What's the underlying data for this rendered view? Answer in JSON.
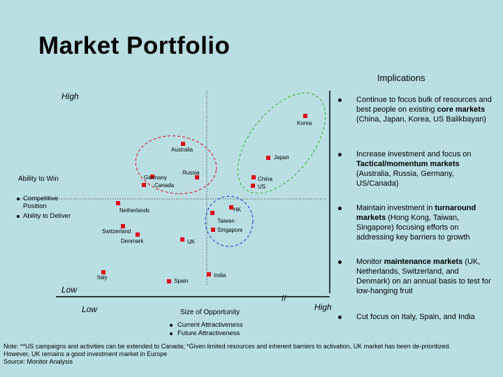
{
  "title": "Market Portfolio",
  "implications_title": "Implications",
  "y_high": "High",
  "y_low": "Low",
  "x_low": "Low",
  "x_high": "High",
  "x_axis_label": "Size of Opportunity",
  "y_axis_label": "Ability to Win",
  "y_legend": [
    "Competitive Position",
    "Ability to Deliver"
  ],
  "x_legend": [
    "Current Attractiveness",
    "Future Attractiveness"
  ],
  "axis_break": "//",
  "markets": [
    {
      "name": "Korea"
    },
    {
      "name": "Australia"
    },
    {
      "name": "Japan"
    },
    {
      "name": "Russia"
    },
    {
      "name": "Germany"
    },
    {
      "name": "Canada"
    },
    {
      "name": "China"
    },
    {
      "name": "US"
    },
    {
      "name": "Netherlands"
    },
    {
      "name": "HK"
    },
    {
      "name": "Taiwan"
    },
    {
      "name": "Singapore"
    },
    {
      "name": "Switzerland"
    },
    {
      "name": "Denmark"
    },
    {
      "name": "UK"
    },
    {
      "name": "Italy"
    },
    {
      "name": "Spain"
    },
    {
      "name": "India"
    }
  ],
  "colors": {
    "background": "#b9dfe3",
    "marker": "#e0001b",
    "core": "#2fb52f",
    "tactical": "#e0001b",
    "turnaround": "#1a2bd6"
  },
  "implications": [
    {
      "text": "Continue to focus bulk of resources and best people on existing core markets (China, Japan, Korea, US Balikbayan)"
    },
    {
      "text": "Increase investment and focus on Tactical/momentum markets (Australia, Russia, Germany, US/Canada)"
    },
    {
      "text": "Maintain investment in turnaround markets (Hong Kong, Taiwan, Singapore) focusing efforts on addressing key barriers to growth"
    },
    {
      "text": "Monitor maintenance markets (UK, Netherlands, Switzerland, and Denmark) on an annual basis to test for low-hanging fruit"
    },
    {
      "text": "Cut focus on Italy, Spain, and India"
    }
  ],
  "note": "Note: **US campaigns and activities can be extended to Canada; *Given limited resources and inherent barriers to activation, UK market has been de-prioritized. However, UK remains a good investment market in Europe",
  "source": "Source: Monitor Analysis"
}
